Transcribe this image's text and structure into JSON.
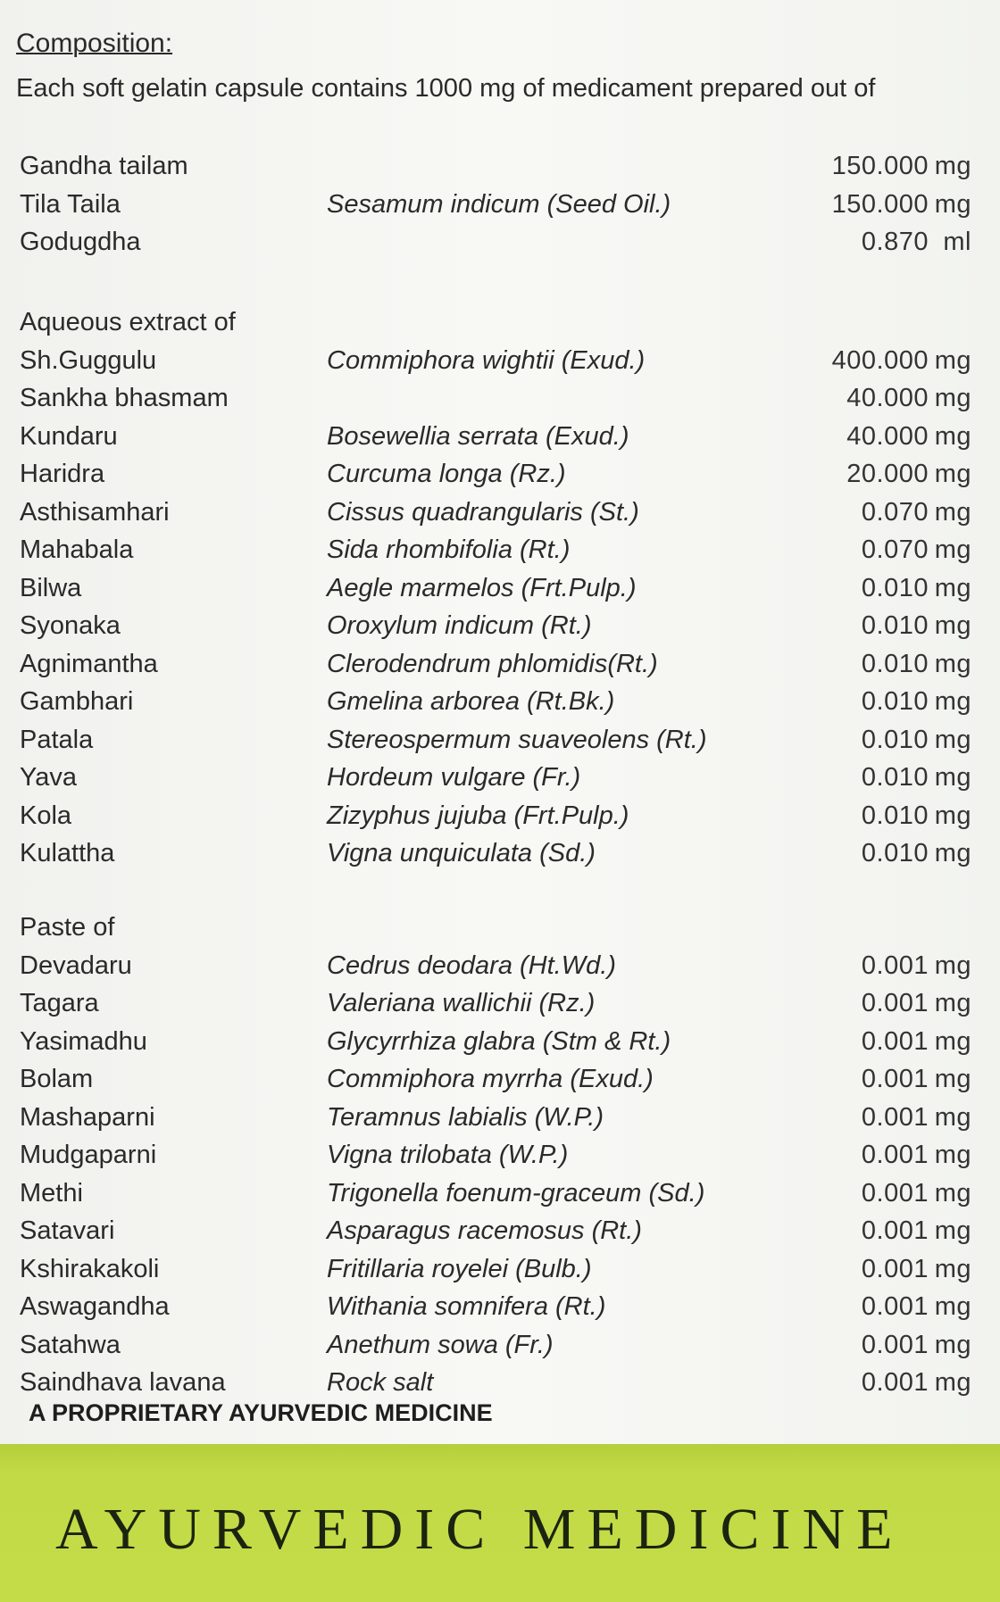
{
  "composition": {
    "heading": "Composition:",
    "intro": "Each soft gelatin capsule contains 1000 mg of medicament prepared out of"
  },
  "sections": [
    {
      "label": "",
      "rows": [
        {
          "name": "Gandha tailam",
          "latin": "",
          "amount": "150.000",
          "unit": "mg"
        },
        {
          "name": "Tila Taila",
          "latin": "Sesamum indicum (Seed Oil.)",
          "amount": "150.000",
          "unit": "mg"
        },
        {
          "name": "Godugdha",
          "latin": "",
          "amount": "0.870",
          "unit": "ml"
        }
      ]
    },
    {
      "label": "Aqueous extract of",
      "rows": [
        {
          "name": "Sh.Guggulu",
          "latin": "Commiphora wightii (Exud.)",
          "amount": "400.000",
          "unit": "mg"
        },
        {
          "name": "Sankha bhasmam",
          "latin": "",
          "amount": "40.000",
          "unit": "mg"
        },
        {
          "name": "Kundaru",
          "latin": "Bosewellia serrata (Exud.)",
          "amount": "40.000",
          "unit": "mg"
        },
        {
          "name": "Haridra",
          "latin": "Curcuma longa (Rz.)",
          "amount": "20.000",
          "unit": "mg"
        },
        {
          "name": "Asthisamhari",
          "latin": "Cissus quadrangularis (St.)",
          "amount": "0.070",
          "unit": "mg"
        },
        {
          "name": "Mahabala",
          "latin": "Sida rhombifolia (Rt.)",
          "amount": "0.070",
          "unit": "mg"
        },
        {
          "name": "Bilwa",
          "latin": "Aegle marmelos (Frt.Pulp.)",
          "amount": "0.010",
          "unit": "mg"
        },
        {
          "name": "Syonaka",
          "latin": "Oroxylum indicum (Rt.)",
          "amount": "0.010",
          "unit": "mg"
        },
        {
          "name": "Agnimantha",
          "latin": "Clerodendrum phlomidis(Rt.)",
          "amount": "0.010",
          "unit": "mg"
        },
        {
          "name": "Gambhari",
          "latin": "Gmelina arborea (Rt.Bk.)",
          "amount": "0.010",
          "unit": "mg"
        },
        {
          "name": "Patala",
          "latin": "Stereospermum suaveolens (Rt.)",
          "amount": "0.010",
          "unit": "mg"
        },
        {
          "name": "Yava",
          "latin": "Hordeum vulgare (Fr.)",
          "amount": "0.010",
          "unit": "mg"
        },
        {
          "name": "Kola",
          "latin": "Zizyphus jujuba (Frt.Pulp.)",
          "amount": "0.010",
          "unit": "mg"
        },
        {
          "name": "Kulattha",
          "latin": "Vigna unquiculata (Sd.)",
          "amount": "0.010",
          "unit": "mg"
        }
      ]
    },
    {
      "label": "Paste of",
      "rows": [
        {
          "name": "Devadaru",
          "latin": "Cedrus deodara (Ht.Wd.)",
          "amount": "0.001",
          "unit": "mg"
        },
        {
          "name": "Tagara",
          "latin": "Valeriana wallichii (Rz.)",
          "amount": "0.001",
          "unit": "mg"
        },
        {
          "name": "Yasimadhu",
          "latin": "Glycyrrhiza glabra (Stm & Rt.)",
          "amount": "0.001",
          "unit": "mg"
        },
        {
          "name": "Bolam",
          "latin": "Commiphora myrrha (Exud.)",
          "amount": "0.001",
          "unit": "mg"
        },
        {
          "name": "Mashaparni",
          "latin": "Teramnus labialis (W.P.)",
          "amount": "0.001",
          "unit": "mg"
        },
        {
          "name": "Mudgaparni",
          "latin": "Vigna trilobata (W.P.)",
          "amount": "0.001",
          "unit": "mg"
        },
        {
          "name": "Methi",
          "latin": "Trigonella foenum-graceum (Sd.)",
          "amount": "0.001",
          "unit": "mg"
        },
        {
          "name": "Satavari",
          "latin": "Asparagus racemosus (Rt.)",
          "amount": "0.001",
          "unit": "mg"
        },
        {
          "name": "Kshirakakoli",
          "latin": "Fritillaria royelei (Bulb.)",
          "amount": "0.001",
          "unit": "mg"
        },
        {
          "name": "Aswagandha",
          "latin": "Withania somnifera (Rt.)",
          "amount": "0.001",
          "unit": "mg"
        },
        {
          "name": "Satahwa",
          "latin": "Anethum sowa (Fr.)",
          "amount": "0.001",
          "unit": "mg"
        },
        {
          "name": "Saindhava lavana",
          "latin": "Rock salt",
          "amount": "0.001",
          "unit": "mg"
        }
      ]
    }
  ],
  "footer_note": "A PROPRIETARY AYURVEDIC MEDICINE",
  "band": {
    "title": "AYURVEDIC MEDICINE",
    "color": "#c2da46"
  }
}
